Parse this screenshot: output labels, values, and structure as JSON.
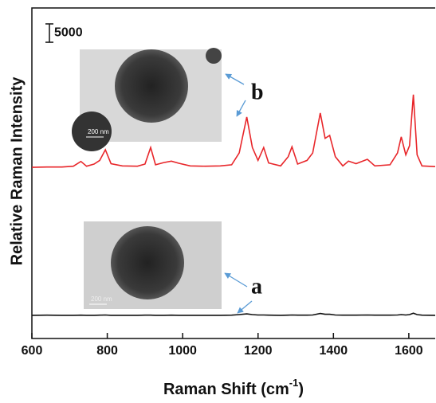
{
  "chart_data": {
    "type": "line",
    "xlabel_parts": [
      "Raman Shift (cm",
      "-1",
      ")"
    ],
    "ylabel": "Relative Raman Intensity",
    "xlim": [
      600,
      1670
    ],
    "ylim": [
      0,
      90000
    ],
    "xticks": [
      600,
      800,
      1000,
      1200,
      1400,
      1600
    ],
    "scale_bar": 5000,
    "annotations": [
      "b",
      "a",
      "200 nm",
      "200 nm"
    ],
    "x": [
      600,
      640,
      680,
      710,
      730,
      745,
      765,
      780,
      795,
      810,
      840,
      880,
      900,
      915,
      928,
      950,
      970,
      990,
      1020,
      1060,
      1100,
      1130,
      1150,
      1170,
      1185,
      1200,
      1215,
      1228,
      1260,
      1280,
      1290,
      1305,
      1330,
      1345,
      1365,
      1378,
      1390,
      1405,
      1425,
      1440,
      1460,
      1490,
      1510,
      1550,
      1570,
      1580,
      1592,
      1602,
      1612,
      1622,
      1635,
      1670
    ],
    "series": [
      {
        "color": "#e8262a",
        "values": [
          46600,
          46700,
          46700,
          46900,
          48200,
          46900,
          47500,
          48500,
          51400,
          47600,
          47000,
          46900,
          47500,
          52000,
          47300,
          47900,
          48300,
          47700,
          47000,
          46900,
          47000,
          47300,
          50500,
          60300,
          52000,
          48500,
          52000,
          47800,
          47000,
          49500,
          52200,
          47500,
          48500,
          50500,
          61400,
          54500,
          55300,
          49500,
          47000,
          48300,
          47600,
          48800,
          47000,
          47300,
          50500,
          54900,
          50000,
          52500,
          66400,
          50000,
          47000,
          46800
        ]
      },
      {
        "color": "#111111",
        "values": [
          6300,
          6350,
          6300,
          6300,
          6350,
          6300,
          6300,
          6350,
          6400,
          6300,
          6300,
          6300,
          6350,
          6350,
          6300,
          6300,
          6350,
          6300,
          6300,
          6300,
          6300,
          6350,
          6500,
          6700,
          6500,
          6400,
          6400,
          6350,
          6300,
          6350,
          6400,
          6350,
          6350,
          6400,
          6800,
          6600,
          6600,
          6400,
          6350,
          6350,
          6350,
          6400,
          6350,
          6350,
          6400,
          6500,
          6400,
          6500,
          6900,
          6500,
          6350,
          6300
        ]
      }
    ]
  }
}
